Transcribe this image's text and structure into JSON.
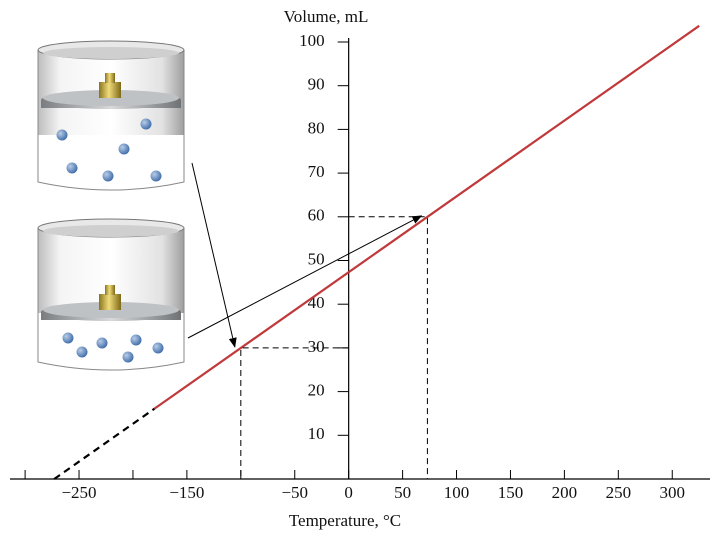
{
  "chart_data": {
    "type": "line",
    "y_label": "Volume, mL",
    "x_label": "Temperature, °C",
    "xlim": [
      -314,
      335
    ],
    "ylim": [
      0,
      100
    ],
    "xticks": [
      {
        "value": -250,
        "label": "−250"
      },
      {
        "value": -150,
        "label": "−150"
      },
      {
        "value": -50,
        "label": "−50"
      },
      0,
      50,
      100,
      150,
      200,
      250,
      300
    ],
    "xminor_ticks": [
      -300,
      -200,
      -100
    ],
    "yticks": [
      10,
      20,
      30,
      40,
      50,
      60,
      70,
      80,
      90,
      100
    ],
    "line": {
      "x": [
        -180,
        325
      ],
      "values": [
        16.1,
        103.7
      ],
      "color": "#c0393b"
    },
    "extrapolation": {
      "x": [
        -273,
        -180
      ],
      "values": [
        0,
        16.1
      ],
      "color": "#000000",
      "dashed": true
    },
    "points": {
      "x": [
        -100,
        73
      ],
      "values": [
        30,
        60
      ]
    }
  }
}
